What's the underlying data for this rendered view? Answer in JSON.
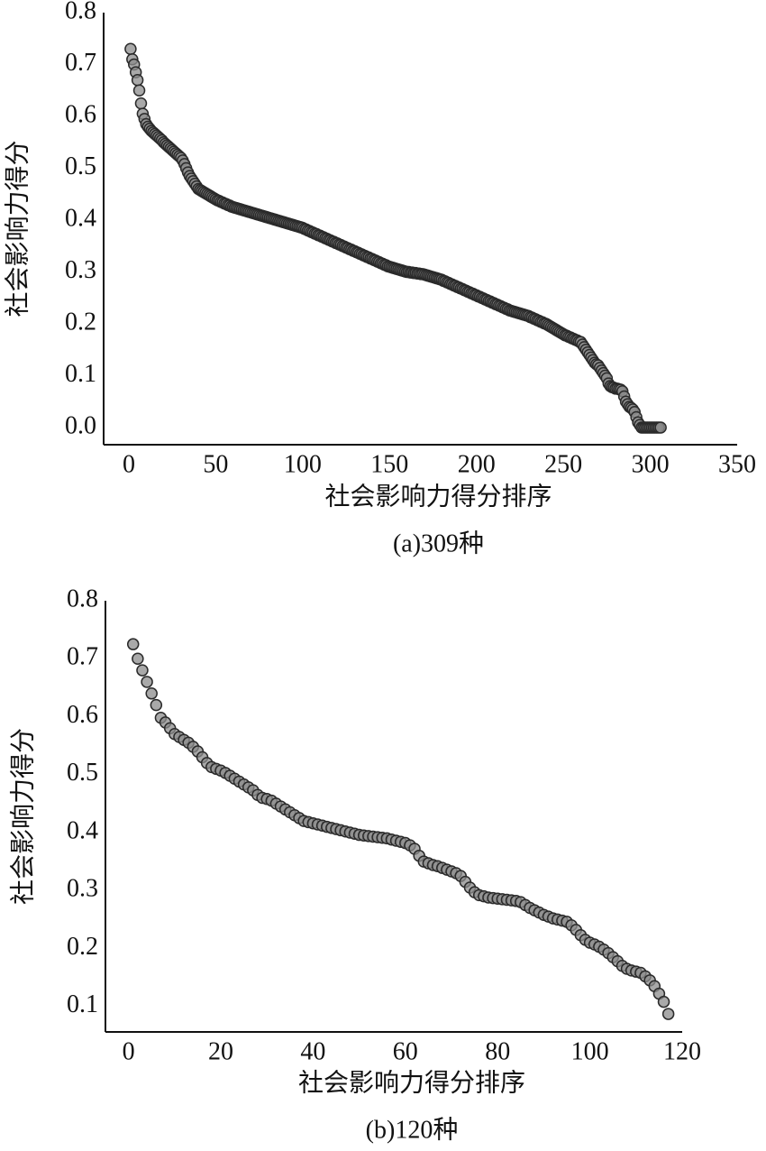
{
  "chart_data": [
    {
      "type": "scatter",
      "title": "(a)309种",
      "x_label": "社会影响力得分排序",
      "y_label": "社会影响力得分",
      "marker_fill": "#8c8c8c",
      "marker_stroke": "#2a2a2a",
      "xlim": [
        -14.5,
        350
      ],
      "ylim": [
        -0.033,
        0.8
      ],
      "xticks": [
        0,
        50,
        100,
        150,
        200,
        250,
        300,
        350
      ],
      "yticks": [
        {
          "value": 0,
          "label": "0.0"
        },
        0.1,
        0.2,
        0.3,
        0.4,
        0.5,
        0.6,
        0.7,
        0.8
      ],
      "x": [
        1,
        2,
        3,
        4,
        5,
        6,
        7,
        8,
        9,
        10,
        11,
        12,
        13,
        14,
        15,
        16,
        17,
        18,
        19,
        20,
        21,
        22,
        23,
        24,
        25,
        26,
        27,
        28,
        29,
        30,
        31,
        32,
        33,
        34,
        35,
        36,
        37,
        38,
        39,
        40,
        41,
        42,
        43,
        44,
        45,
        46,
        47,
        48,
        49,
        50,
        51,
        52,
        53,
        54,
        55,
        56,
        57,
        58,
        59,
        60,
        61,
        62,
        63,
        64,
        65,
        66,
        67,
        68,
        69,
        70,
        71,
        72,
        73,
        74,
        75,
        76,
        77,
        78,
        79,
        80,
        81,
        82,
        83,
        84,
        85,
        86,
        87,
        88,
        89,
        90,
        91,
        92,
        93,
        94,
        95,
        96,
        97,
        98,
        99,
        100,
        101,
        102,
        103,
        104,
        105,
        106,
        107,
        108,
        109,
        110,
        111,
        112,
        113,
        114,
        115,
        116,
        117,
        118,
        119,
        120,
        121,
        122,
        123,
        124,
        125,
        126,
        127,
        128,
        129,
        130,
        131,
        132,
        133,
        134,
        135,
        136,
        137,
        138,
        139,
        140,
        141,
        142,
        143,
        144,
        145,
        146,
        147,
        148,
        149,
        150,
        151,
        152,
        153,
        154,
        155,
        156,
        157,
        158,
        159,
        160,
        161,
        162,
        163,
        164,
        165,
        166,
        167,
        168,
        169,
        170,
        171,
        172,
        173,
        174,
        175,
        176,
        177,
        178,
        179,
        180,
        181,
        182,
        183,
        184,
        185,
        186,
        187,
        188,
        189,
        190,
        191,
        192,
        193,
        194,
        195,
        196,
        197,
        198,
        199,
        200,
        201,
        202,
        203,
        204,
        205,
        206,
        207,
        208,
        209,
        210,
        211,
        212,
        213,
        214,
        215,
        216,
        217,
        218,
        219,
        220,
        221,
        222,
        223,
        224,
        225,
        226,
        227,
        228,
        229,
        230,
        231,
        232,
        233,
        234,
        235,
        236,
        237,
        238,
        239,
        240,
        241,
        242,
        243,
        244,
        245,
        246,
        247,
        248,
        249,
        250,
        251,
        252,
        253,
        254,
        255,
        256,
        257,
        258,
        259,
        260,
        261,
        262,
        263,
        264,
        265,
        266,
        267,
        268,
        269,
        270,
        271,
        272,
        273,
        274,
        275,
        276,
        277,
        278,
        279,
        280,
        281,
        282,
        283,
        284,
        285,
        286,
        287,
        288,
        289,
        290,
        291,
        292,
        293,
        294,
        295,
        296,
        297,
        298,
        299,
        300,
        301,
        302,
        303,
        304,
        305,
        306
      ],
      "values": [
        0.73,
        0.71,
        0.7,
        0.685,
        0.67,
        0.65,
        0.625,
        0.605,
        0.595,
        0.585,
        0.58,
        0.576,
        0.572,
        0.569,
        0.566,
        0.563,
        0.56,
        0.557,
        0.554,
        0.55,
        0.547,
        0.544,
        0.541,
        0.538,
        0.535,
        0.532,
        0.529,
        0.526,
        0.523,
        0.52,
        0.515,
        0.508,
        0.5,
        0.492,
        0.485,
        0.48,
        0.475,
        0.47,
        0.465,
        0.46,
        0.458,
        0.456,
        0.454,
        0.452,
        0.45,
        0.448,
        0.446,
        0.444,
        0.442,
        0.44,
        0.438,
        0.437,
        0.435,
        0.434,
        0.432,
        0.431,
        0.429,
        0.428,
        0.426,
        0.425,
        0.424,
        0.423,
        0.422,
        0.421,
        0.42,
        0.419,
        0.418,
        0.417,
        0.416,
        0.415,
        0.414,
        0.413,
        0.412,
        0.411,
        0.41,
        0.409,
        0.408,
        0.407,
        0.406,
        0.405,
        0.404,
        0.403,
        0.402,
        0.401,
        0.4,
        0.399,
        0.398,
        0.397,
        0.396,
        0.395,
        0.394,
        0.393,
        0.392,
        0.391,
        0.39,
        0.389,
        0.388,
        0.387,
        0.386,
        0.385,
        0.383,
        0.382,
        0.38,
        0.379,
        0.377,
        0.376,
        0.374,
        0.373,
        0.371,
        0.37,
        0.368,
        0.367,
        0.365,
        0.364,
        0.362,
        0.361,
        0.359,
        0.358,
        0.356,
        0.355,
        0.353,
        0.352,
        0.35,
        0.349,
        0.347,
        0.346,
        0.344,
        0.343,
        0.341,
        0.34,
        0.338,
        0.337,
        0.335,
        0.334,
        0.332,
        0.331,
        0.329,
        0.328,
        0.326,
        0.325,
        0.323,
        0.322,
        0.32,
        0.319,
        0.317,
        0.316,
        0.314,
        0.313,
        0.311,
        0.31,
        0.309,
        0.308,
        0.307,
        0.306,
        0.305,
        0.304,
        0.303,
        0.302,
        0.301,
        0.3,
        0.3,
        0.299,
        0.299,
        0.298,
        0.298,
        0.297,
        0.297,
        0.296,
        0.296,
        0.295,
        0.294,
        0.293,
        0.292,
        0.291,
        0.29,
        0.289,
        0.288,
        0.287,
        0.286,
        0.285,
        0.283,
        0.282,
        0.28,
        0.279,
        0.277,
        0.276,
        0.274,
        0.273,
        0.271,
        0.27,
        0.268,
        0.267,
        0.265,
        0.264,
        0.262,
        0.261,
        0.259,
        0.258,
        0.256,
        0.255,
        0.253,
        0.252,
        0.25,
        0.249,
        0.247,
        0.246,
        0.244,
        0.243,
        0.241,
        0.24,
        0.238,
        0.237,
        0.235,
        0.234,
        0.232,
        0.231,
        0.229,
        0.228,
        0.226,
        0.225,
        0.224,
        0.223,
        0.222,
        0.221,
        0.22,
        0.219,
        0.218,
        0.217,
        0.216,
        0.215,
        0.213,
        0.212,
        0.21,
        0.209,
        0.207,
        0.206,
        0.204,
        0.203,
        0.201,
        0.2,
        0.198,
        0.196,
        0.194,
        0.192,
        0.19,
        0.188,
        0.186,
        0.184,
        0.182,
        0.18,
        0.178,
        0.177,
        0.175,
        0.174,
        0.172,
        0.171,
        0.169,
        0.168,
        0.166,
        0.165,
        0.16,
        0.155,
        0.15,
        0.145,
        0.14,
        0.135,
        0.13,
        0.125,
        0.122,
        0.12,
        0.115,
        0.11,
        0.105,
        0.1,
        0.095,
        0.085,
        0.08,
        0.078,
        0.077,
        0.075,
        0.075,
        0.074,
        0.073,
        0.07,
        0.06,
        0.05,
        0.045,
        0.04,
        0.038,
        0.035,
        0.03,
        0.02,
        0.01,
        0.005,
        0,
        0,
        0,
        0,
        0,
        0,
        0,
        0,
        0,
        0,
        0,
        0
      ]
    },
    {
      "type": "scatter",
      "title": "(b)120种",
      "x_label": "社会影响力得分排序",
      "y_label": "社会影响力得分",
      "marker_fill": "#8c8c8c",
      "marker_stroke": "#2a2a2a",
      "xlim": [
        -5,
        120
      ],
      "ylim": [
        0.056,
        0.8
      ],
      "xticks": [
        0,
        20,
        40,
        60,
        80,
        100,
        120
      ],
      "yticks": [
        0.1,
        0.2,
        0.3,
        0.4,
        0.5,
        0.6,
        0.7,
        0.8
      ],
      "x": [
        1,
        2,
        3,
        4,
        5,
        6,
        7,
        8,
        9,
        10,
        11,
        12,
        13,
        14,
        15,
        16,
        17,
        18,
        19,
        20,
        21,
        22,
        23,
        24,
        25,
        26,
        27,
        28,
        29,
        30,
        31,
        32,
        33,
        34,
        35,
        36,
        37,
        38,
        39,
        40,
        41,
        42,
        43,
        44,
        45,
        46,
        47,
        48,
        49,
        50,
        51,
        52,
        53,
        54,
        55,
        56,
        57,
        58,
        59,
        60,
        61,
        62,
        63,
        64,
        65,
        66,
        67,
        68,
        69,
        70,
        71,
        72,
        73,
        74,
        75,
        76,
        77,
        78,
        79,
        80,
        81,
        82,
        83,
        84,
        85,
        86,
        87,
        88,
        89,
        90,
        91,
        92,
        93,
        94,
        95,
        96,
        97,
        98,
        99,
        100,
        101,
        102,
        103,
        104,
        105,
        106,
        107,
        108,
        109,
        110,
        111,
        112,
        113,
        114,
        115,
        116,
        117
      ],
      "values": [
        0.725,
        0.7,
        0.68,
        0.66,
        0.64,
        0.62,
        0.598,
        0.59,
        0.58,
        0.57,
        0.565,
        0.56,
        0.555,
        0.548,
        0.54,
        0.53,
        0.52,
        0.513,
        0.51,
        0.507,
        0.503,
        0.498,
        0.493,
        0.488,
        0.483,
        0.478,
        0.473,
        0.465,
        0.46,
        0.458,
        0.455,
        0.45,
        0.445,
        0.44,
        0.435,
        0.43,
        0.425,
        0.42,
        0.418,
        0.416,
        0.414,
        0.412,
        0.41,
        0.408,
        0.406,
        0.404,
        0.402,
        0.4,
        0.398,
        0.396,
        0.395,
        0.394,
        0.393,
        0.392,
        0.391,
        0.39,
        0.388,
        0.386,
        0.384,
        0.382,
        0.378,
        0.372,
        0.36,
        0.35,
        0.347,
        0.344,
        0.342,
        0.339,
        0.336,
        0.333,
        0.33,
        0.325,
        0.315,
        0.305,
        0.297,
        0.292,
        0.29,
        0.288,
        0.287,
        0.286,
        0.285,
        0.284,
        0.283,
        0.282,
        0.28,
        0.275,
        0.27,
        0.266,
        0.262,
        0.258,
        0.255,
        0.252,
        0.25,
        0.248,
        0.246,
        0.24,
        0.232,
        0.223,
        0.215,
        0.21,
        0.207,
        0.203,
        0.198,
        0.192,
        0.185,
        0.178,
        0.17,
        0.165,
        0.162,
        0.16,
        0.158,
        0.152,
        0.145,
        0.135,
        0.122,
        0.108,
        0.087
      ]
    }
  ]
}
